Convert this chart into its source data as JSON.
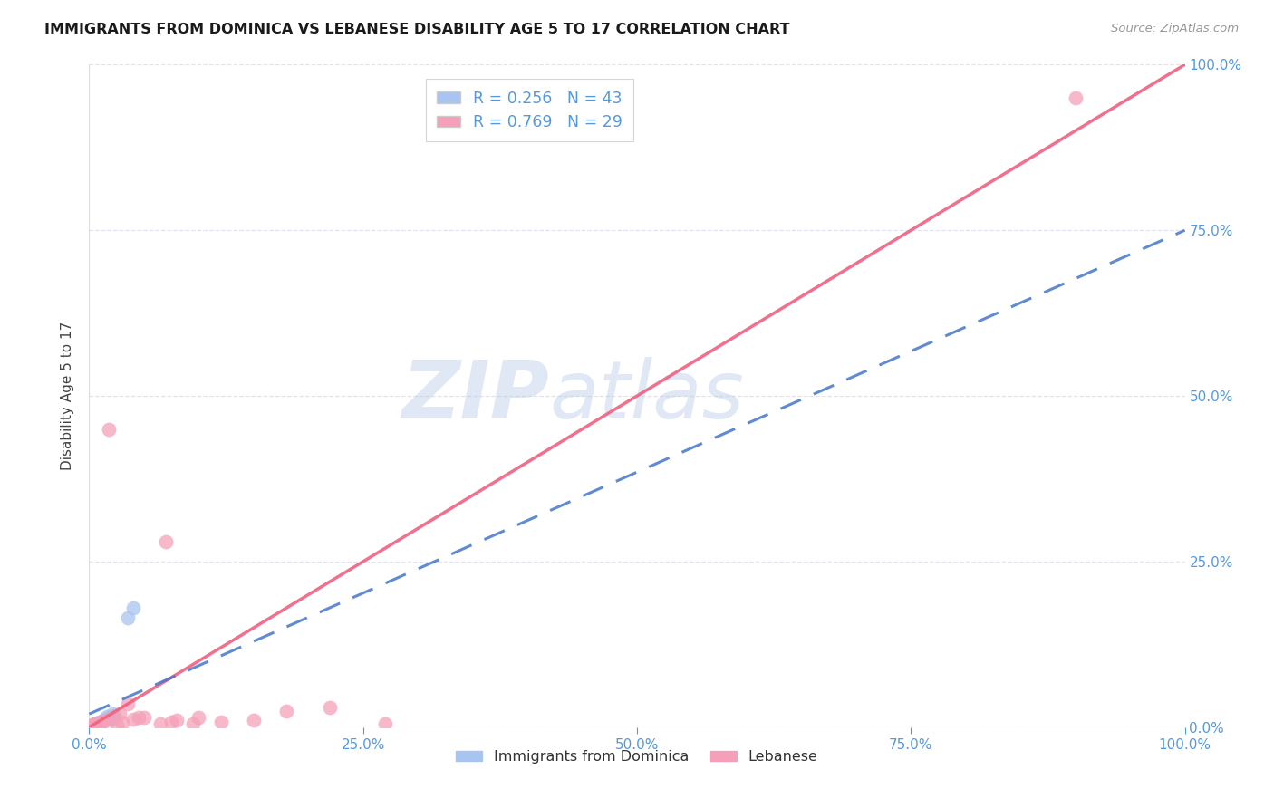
{
  "title": "IMMIGRANTS FROM DOMINICA VS LEBANESE DISABILITY AGE 5 TO 17 CORRELATION CHART",
  "source": "Source: ZipAtlas.com",
  "ylabel": "Disability Age 5 to 17",
  "watermark_text": "ZIP",
  "watermark_text2": "atlas",
  "dominica_R": 0.256,
  "dominica_N": 43,
  "lebanese_R": 0.769,
  "lebanese_N": 29,
  "dominica_color": "#a8c4f0",
  "lebanese_color": "#f5a0b8",
  "dominica_line_color": "#4477cc",
  "lebanese_line_color": "#f06080",
  "axis_color": "#5599dd",
  "grid_color": "#e0e4ee",
  "right_tick_labels": [
    "0.0%",
    "25.0%",
    "50.0%",
    "75.0%",
    "100.0%"
  ],
  "right_tick_values": [
    0,
    25,
    50,
    75,
    100
  ],
  "x_tick_labels": [
    "0.0%",
    "25.0%",
    "50.0%",
    "75.0%",
    "100.0%"
  ],
  "x_tick_values": [
    0,
    25,
    50,
    75,
    100
  ],
  "xlim": [
    0,
    100
  ],
  "ylim": [
    0,
    100
  ],
  "background_color": "#ffffff",
  "dom_x": [
    0.5,
    1.0,
    1.5,
    2.0,
    0.3,
    0.8,
    1.2,
    0.2,
    0.6,
    0.9,
    0.15,
    0.4,
    0.7,
    1.1,
    1.4,
    1.8,
    2.3,
    0.25,
    0.55,
    0.85,
    1.6,
    2.1,
    0.35,
    0.65,
    0.95,
    1.3,
    1.7,
    2.2,
    0.45,
    0.75,
    3.5,
    4.0,
    0.1,
    0.2,
    0.3,
    0.5,
    0.8,
    1.0,
    1.5,
    2.0,
    0.4,
    0.6,
    0.9
  ],
  "dom_y": [
    0.5,
    0.8,
    1.0,
    1.2,
    0.3,
    0.6,
    0.9,
    0.2,
    0.4,
    0.7,
    0.15,
    0.35,
    0.55,
    0.75,
    1.1,
    1.4,
    1.8,
    0.25,
    0.45,
    0.65,
    1.6,
    2.0,
    0.3,
    0.5,
    0.7,
    1.0,
    1.3,
    1.7,
    0.4,
    0.6,
    16.5,
    18.0,
    0.1,
    0.2,
    0.2,
    0.4,
    0.6,
    0.8,
    1.2,
    1.5,
    0.3,
    0.5,
    0.7
  ],
  "leb_x": [
    0.5,
    1.0,
    1.5,
    2.0,
    2.5,
    3.0,
    4.0,
    5.0,
    6.5,
    7.5,
    8.0,
    9.5,
    10.0,
    12.0,
    15.0,
    18.0,
    22.0,
    27.0,
    0.3,
    0.8,
    1.2,
    2.8,
    3.5,
    0.2,
    0.6,
    1.8,
    4.5,
    90.0,
    7.0
  ],
  "leb_y": [
    0.5,
    0.8,
    1.0,
    1.5,
    0.3,
    0.6,
    1.2,
    1.5,
    0.5,
    0.8,
    1.0,
    0.5,
    1.5,
    0.8,
    1.0,
    2.5,
    3.0,
    0.5,
    0.3,
    0.5,
    0.8,
    2.0,
    3.5,
    0.2,
    0.5,
    45.0,
    1.5,
    95.0,
    28.0
  ]
}
